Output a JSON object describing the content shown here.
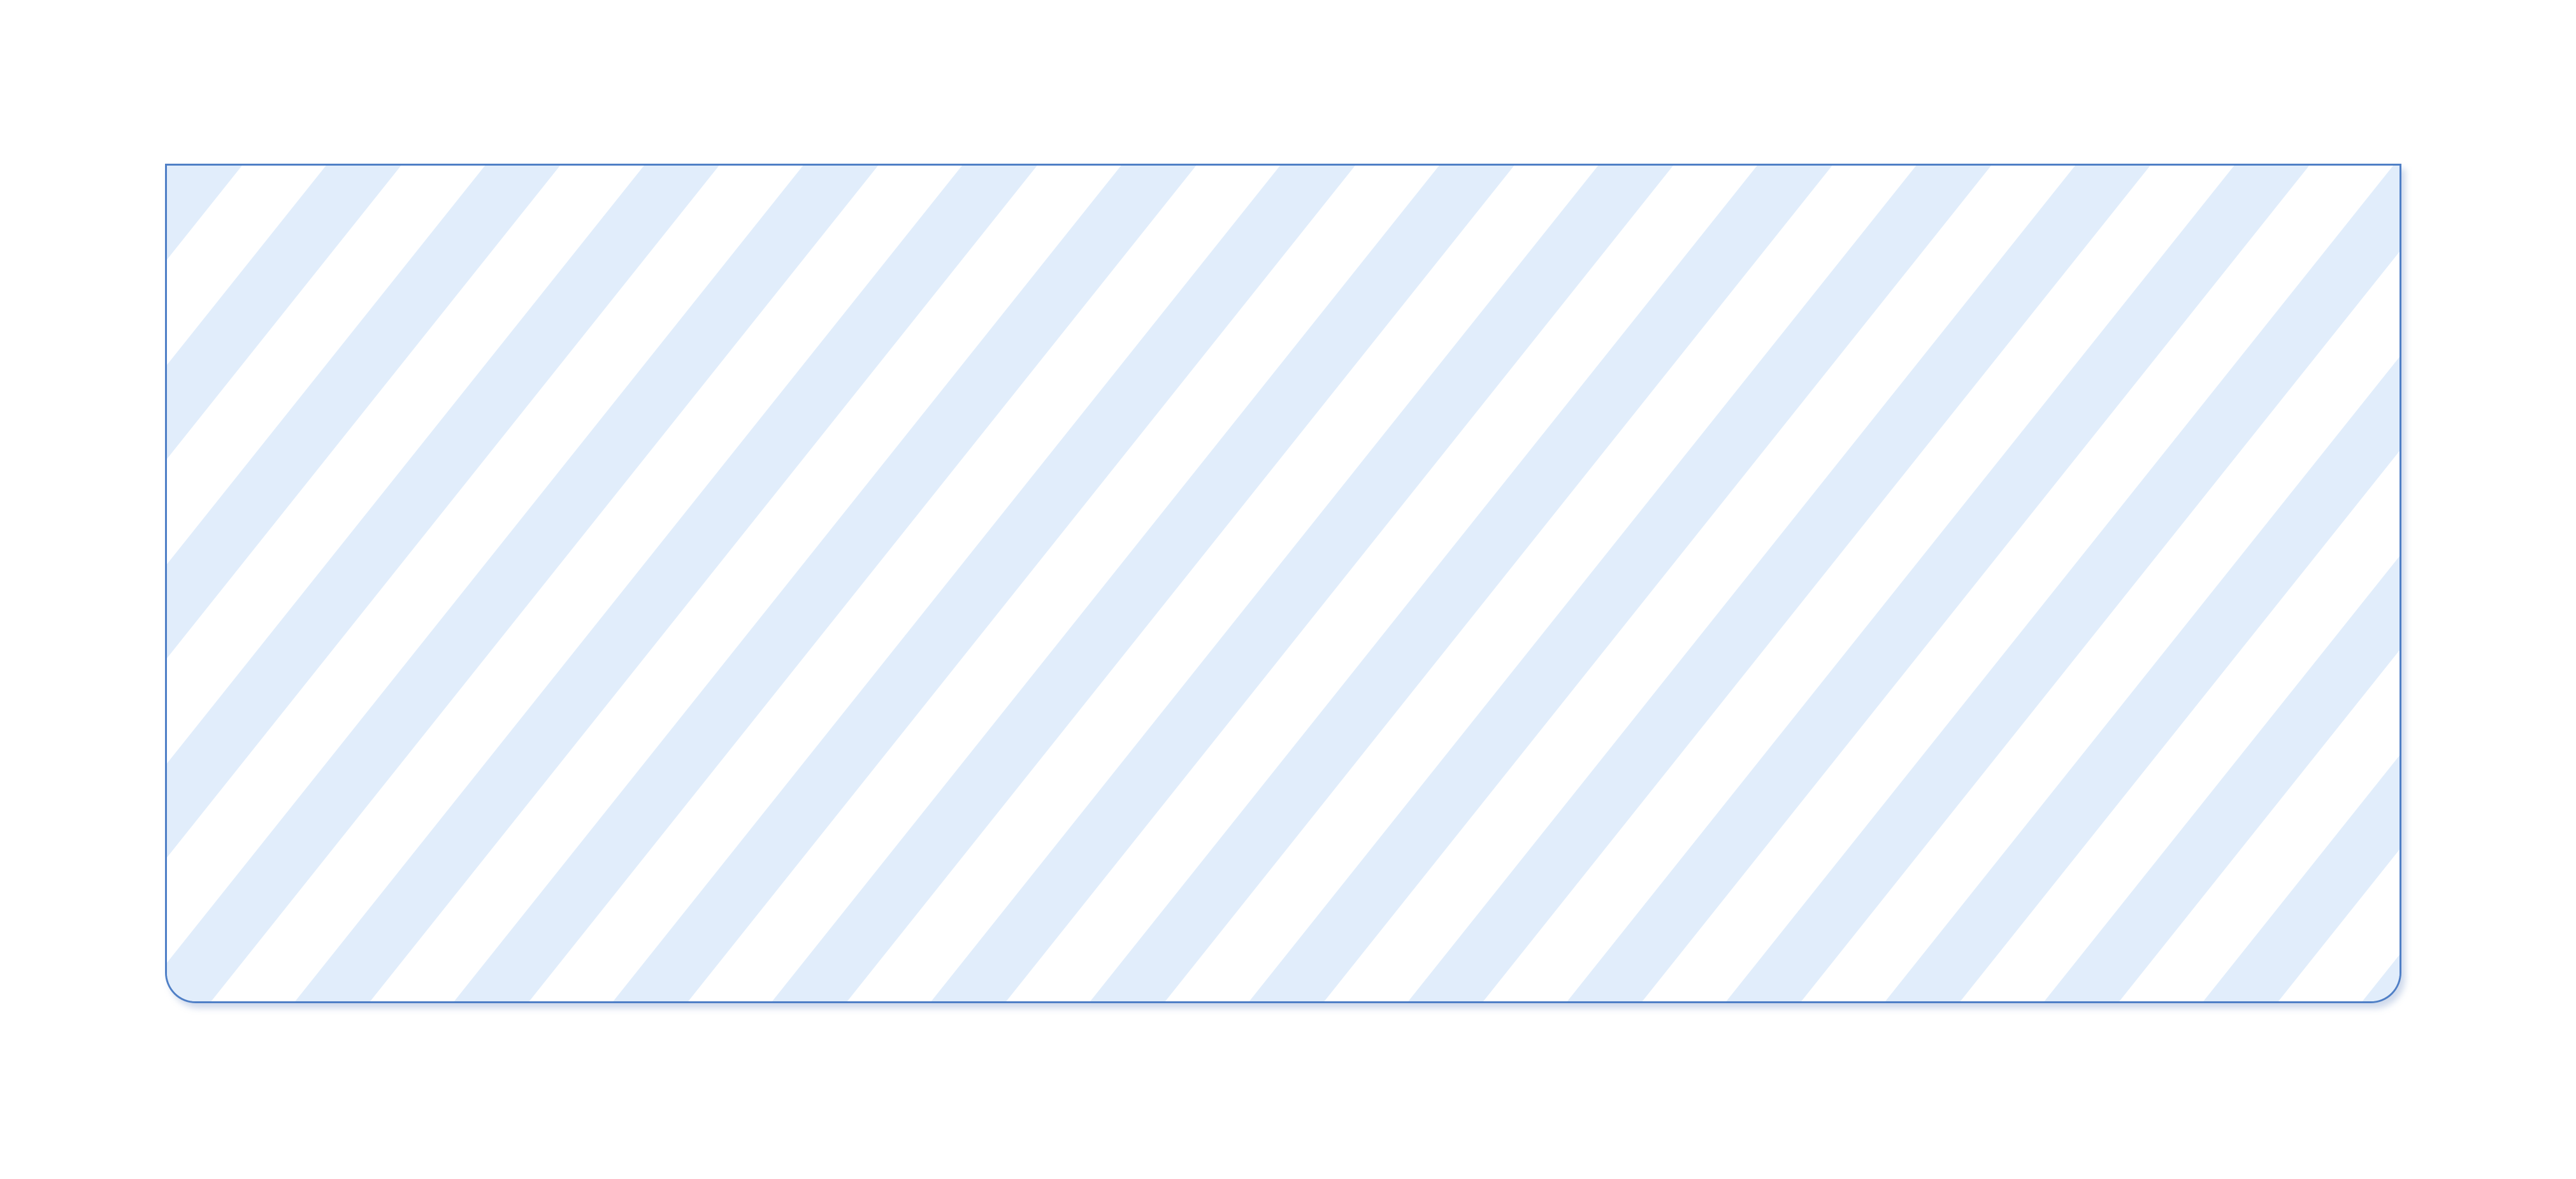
{
  "panel": {
    "caption": "",
    "stripe_color": "#e1edfb",
    "border_color": "#4f7fc6",
    "background_color": "#ffffff"
  }
}
